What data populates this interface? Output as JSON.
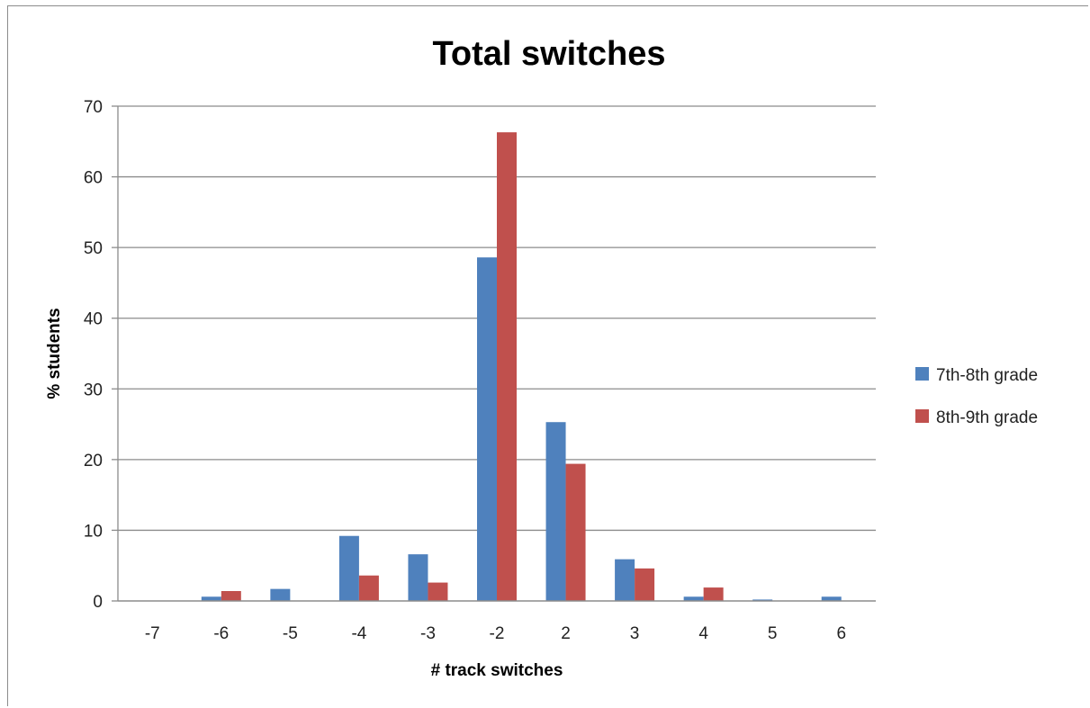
{
  "chart_data": {
    "type": "bar",
    "title": "Total switches",
    "xlabel": "# track switches",
    "ylabel": "% students",
    "categories": [
      "-7",
      "-6",
      "-5",
      "-4",
      "-3",
      "-2",
      "2",
      "3",
      "4",
      "5",
      "6"
    ],
    "ylim": [
      0,
      70
    ],
    "yticks": [
      0,
      10,
      20,
      30,
      40,
      50,
      60,
      70
    ],
    "grid": true,
    "legend_position": "right",
    "series": [
      {
        "name": "7th-8th grade",
        "color": "#4f81bd",
        "values": [
          0,
          0.6,
          1.7,
          9.2,
          6.6,
          48.6,
          25.3,
          5.9,
          0.6,
          0.2,
          0.6
        ]
      },
      {
        "name": "8th-9th grade",
        "color": "#c0504d",
        "values": [
          0,
          1.4,
          0,
          3.6,
          2.6,
          66.3,
          19.4,
          4.6,
          1.9,
          0,
          0
        ]
      }
    ]
  }
}
